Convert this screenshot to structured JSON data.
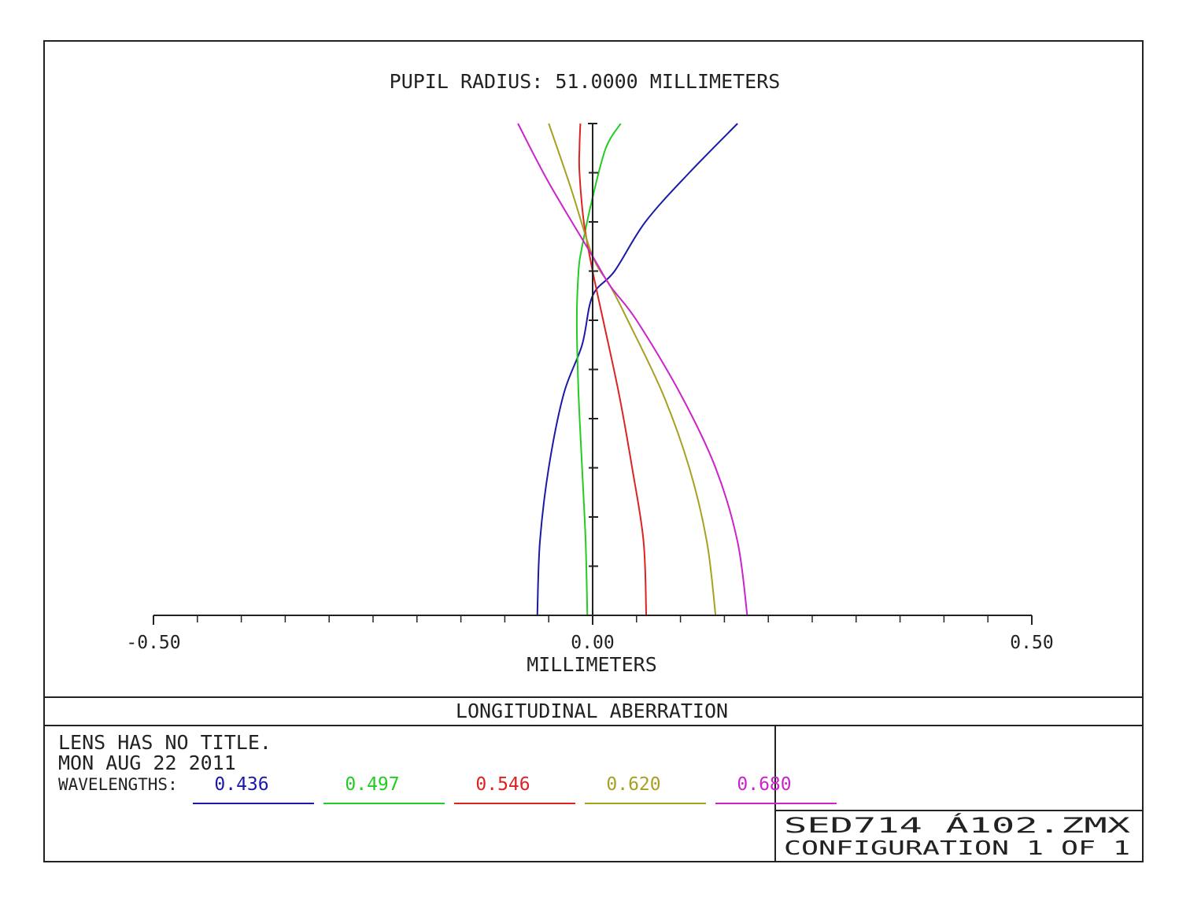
{
  "chart_data": {
    "type": "line",
    "title": "PUPIL RADIUS: 51.0000 MILLIMETERS",
    "xlabel": "MILLIMETERS",
    "ylabel": "",
    "xlim": [
      -0.5,
      0.5
    ],
    "ylim": [
      0,
      1
    ],
    "grid": false,
    "x_tick_labels": [
      {
        "value": -0.5,
        "label": "-0.50"
      },
      {
        "value": 0.0,
        "label": "0.00"
      },
      {
        "value": 0.5,
        "label": "0.50"
      }
    ],
    "x_minor_ticks": [
      -0.45,
      -0.4,
      -0.35,
      -0.3,
      -0.25,
      -0.2,
      -0.15,
      -0.1,
      -0.05,
      0.05,
      0.1,
      0.15,
      0.2,
      0.25,
      0.3,
      0.35,
      0.4,
      0.45
    ],
    "y_ticks": [
      0.1,
      0.2,
      0.3,
      0.4,
      0.5,
      0.6,
      0.7,
      0.8,
      0.9
    ],
    "series": [
      {
        "name": "0.436",
        "color": "#1a1aa8",
        "x": [
          -0.063,
          -0.06,
          -0.05,
          -0.033,
          -0.012,
          0.0,
          0.025,
          0.06,
          0.11,
          0.165
        ],
        "y": [
          0.0,
          0.15,
          0.3,
          0.45,
          0.55,
          0.65,
          0.7,
          0.8,
          0.9,
          1.0
        ]
      },
      {
        "name": "0.497",
        "color": "#22cc22",
        "x": [
          -0.006,
          -0.008,
          -0.012,
          -0.016,
          -0.018,
          -0.016,
          -0.012,
          0.0,
          0.015,
          0.032
        ],
        "y": [
          0.0,
          0.15,
          0.3,
          0.45,
          0.6,
          0.7,
          0.75,
          0.85,
          0.95,
          1.0
        ]
      },
      {
        "name": "0.546",
        "color": "#dd2222",
        "x": [
          0.061,
          0.058,
          0.045,
          0.03,
          0.012,
          0.0,
          -0.01,
          -0.015,
          -0.015,
          -0.014
        ],
        "y": [
          0.0,
          0.15,
          0.3,
          0.45,
          0.6,
          0.7,
          0.8,
          0.9,
          0.95,
          1.0
        ]
      },
      {
        "name": "0.620",
        "color": "#a8a020",
        "x": [
          0.14,
          0.13,
          0.11,
          0.08,
          0.04,
          0.02,
          0.0,
          -0.025,
          -0.05
        ],
        "y": [
          0.0,
          0.15,
          0.3,
          0.45,
          0.6,
          0.67,
          0.73,
          0.87,
          1.0
        ]
      },
      {
        "name": "0.680",
        "color": "#cc22cc",
        "x": [
          0.176,
          0.165,
          0.14,
          0.1,
          0.05,
          0.02,
          0.0,
          -0.05,
          -0.085
        ],
        "y": [
          0.0,
          0.15,
          0.3,
          0.45,
          0.6,
          0.67,
          0.73,
          0.88,
          1.0
        ]
      }
    ]
  },
  "footer": {
    "plot_type": "LONGITUDINAL ABERRATION",
    "lens_title": "LENS HAS NO TITLE.",
    "date": "MON AUG 22 2011",
    "wavelengths_label": "WAVELENGTHS:",
    "file_name": "SED714 Á102.ZMX",
    "configuration": "CONFIGURATION 1 OF 1"
  },
  "colors": {
    "frame": "#222222",
    "axis": "#222222"
  }
}
